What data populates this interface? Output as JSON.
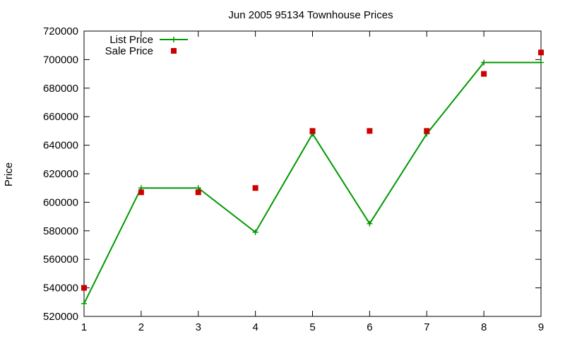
{
  "chart_data": {
    "type": "line",
    "title": "Jun 2005 95134 Townhouse Prices",
    "xlabel": "",
    "ylabel": "Price",
    "xlim": [
      1,
      9
    ],
    "ylim": [
      520000,
      720000
    ],
    "xticks": [
      1,
      2,
      3,
      4,
      5,
      6,
      7,
      8,
      9
    ],
    "yticks": [
      520000,
      540000,
      560000,
      580000,
      600000,
      620000,
      640000,
      660000,
      680000,
      700000,
      720000
    ],
    "grid": false,
    "legend_position": "top-left",
    "series": [
      {
        "name": "List Price",
        "style": "line+cross",
        "color": "#009900",
        "x": [
          1,
          2,
          3,
          4,
          5,
          6,
          7,
          8,
          9
        ],
        "y": [
          529000,
          610000,
          610000,
          579000,
          648000,
          585000,
          648000,
          698000,
          698000
        ]
      },
      {
        "name": "Sale Price",
        "style": "square-marker",
        "color": "#cc0000",
        "x": [
          1,
          2,
          3,
          4,
          5,
          6,
          7,
          8,
          9
        ],
        "y": [
          540000,
          607000,
          607000,
          610000,
          650000,
          650000,
          650000,
          690000,
          705000
        ]
      }
    ]
  }
}
